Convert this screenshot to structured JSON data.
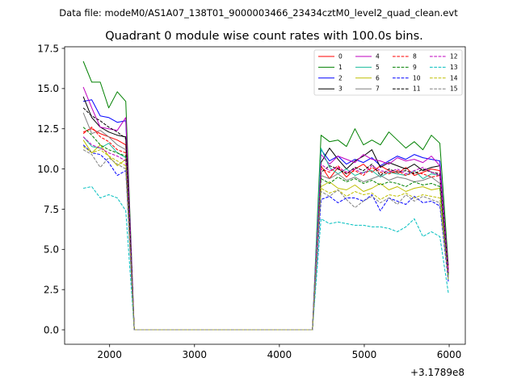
{
  "figure": {
    "suptitle": "Data file: modeM0/AS1A07_138T01_9000003466_23434cztM0_level2_quad_clean.evt",
    "title": "Quadrant 0 module wise count rates with 100.0s bins.",
    "offset_label": "+3.1789e8"
  },
  "chart_data": {
    "type": "line",
    "title": "Quadrant 0 module wise count rates with 100.0s bins.",
    "xlabel": "",
    "ylabel": "",
    "x_offset": 317890000,
    "xlim": [
      1470,
      6190
    ],
    "ylim": [
      -0.9,
      17.6
    ],
    "x_ticks": [
      2000,
      3000,
      4000,
      5000,
      6000
    ],
    "x_tick_labels": [
      "2000",
      "3000",
      "4000",
      "5000",
      "6000"
    ],
    "y_ticks": [
      0,
      2.5,
      5,
      7.5,
      10,
      12.5,
      15,
      17.5
    ],
    "y_tick_labels": [
      "0.0",
      "2.5",
      "5.0",
      "7.5",
      "10.0",
      "12.5",
      "15.0",
      "17.5"
    ],
    "grid": false,
    "legend_location": "top-right",
    "legend_columns": 4,
    "x": [
      1690,
      1790,
      1890,
      1990,
      2090,
      2190,
      2290,
      2390,
      2490,
      2590,
      2690,
      2790,
      2890,
      2990,
      3090,
      3190,
      3290,
      3390,
      3490,
      3590,
      3690,
      3790,
      3890,
      3990,
      4090,
      4190,
      4290,
      4390,
      4490,
      4590,
      4690,
      4790,
      4890,
      4990,
      5090,
      5190,
      5290,
      5390,
      5490,
      5590,
      5690,
      5790,
      5890,
      5990
    ],
    "series": [
      {
        "name": "0",
        "color": "#ff0000",
        "dash": "solid",
        "first": [
          12.3,
          12.5,
          12.2,
          12.0,
          11.8,
          11.5
        ],
        "second": [
          10.2,
          9.4,
          10.1,
          9.5,
          10.0,
          10.3,
          9.8,
          10.2,
          9.9,
          9.7,
          10.1,
          9.6,
          9.8,
          10.0,
          9.9
        ],
        "end": 3.8
      },
      {
        "name": "1",
        "color": "#008000",
        "dash": "solid",
        "first": [
          16.7,
          15.4,
          15.4,
          13.8,
          14.8,
          14.2
        ],
        "second": [
          12.1,
          11.7,
          11.8,
          11.4,
          12.5,
          11.5,
          11.8,
          11.5,
          12.3,
          11.8,
          11.3,
          11.7,
          11.2,
          12.1,
          11.6
        ],
        "end": 4.0
      },
      {
        "name": "2",
        "color": "#0000ff",
        "dash": "solid",
        "first": [
          14.2,
          14.3,
          13.3,
          13.2,
          12.9,
          13.0
        ],
        "second": [
          11.2,
          10.5,
          10.8,
          10.3,
          10.6,
          10.4,
          10.7,
          10.2,
          10.5,
          10.8,
          10.6,
          10.9,
          10.7,
          10.6,
          10.5
        ],
        "end": 3.6
      },
      {
        "name": "3",
        "color": "#000000",
        "dash": "solid",
        "first": [
          14.5,
          13.2,
          12.6,
          12.3,
          12.1,
          12.0
        ],
        "second": [
          10.4,
          11.3,
          10.6,
          10.0,
          10.5,
          10.8,
          11.2,
          10.1,
          10.4,
          10.2,
          10.0,
          10.3,
          9.9,
          10.1,
          10.2
        ],
        "end": 3.5
      },
      {
        "name": "4",
        "color": "#bf00bf",
        "dash": "solid",
        "first": [
          15.1,
          13.8,
          12.6,
          12.5,
          12.4,
          13.2
        ],
        "second": [
          10.9,
          10.3,
          10.8,
          10.6,
          10.4,
          10.9,
          10.6,
          10.5,
          10.3,
          10.7,
          10.5,
          10.6,
          10.4,
          10.8,
          10.2
        ],
        "end": 3.7
      },
      {
        "name": "5",
        "color": "#1abc9c",
        "dash": "solid",
        "first": [
          12.0,
          11.4,
          11.3,
          11.6,
          11.0,
          10.7
        ],
        "second": [
          11.3,
          10.1,
          9.7,
          10.0,
          9.6,
          9.8,
          9.9,
          9.5,
          9.8,
          9.7,
          9.6,
          9.9,
          9.4,
          9.7,
          9.6
        ],
        "end": 3.4
      },
      {
        "name": "6",
        "color": "#bfbf00",
        "dash": "solid",
        "first": [
          11.8,
          11.0,
          11.5,
          10.8,
          10.2,
          10.6
        ],
        "second": [
          8.9,
          9.2,
          8.8,
          8.7,
          9.0,
          8.6,
          8.8,
          9.1,
          8.7,
          8.9,
          8.6,
          8.8,
          8.9,
          8.7,
          8.8
        ],
        "end": 3.2
      },
      {
        "name": "7",
        "color": "#808080",
        "dash": "solid",
        "first": [
          13.5,
          12.2,
          12.4,
          12.0,
          11.5,
          11.2
        ],
        "second": [
          9.6,
          9.4,
          9.7,
          9.3,
          9.5,
          9.2,
          9.4,
          9.6,
          9.3,
          9.5,
          9.4,
          9.2,
          9.3,
          9.5,
          9.1
        ],
        "end": 3.3
      },
      {
        "name": "8",
        "color": "#ff0000",
        "dash": "dashed",
        "first": [
          12.2,
          12.6,
          12.0,
          11.7,
          11.2,
          11.0
        ],
        "second": [
          10.0,
          9.8,
          10.2,
          9.7,
          9.9,
          9.6,
          10.1,
          9.8,
          9.7,
          9.9,
          9.6,
          9.8,
          9.7,
          9.5,
          9.6
        ],
        "end": 3.6
      },
      {
        "name": "9",
        "color": "#008000",
        "dash": "dashed",
        "first": [
          12.6,
          12.1,
          11.5,
          11.2,
          11.0,
          10.8
        ],
        "second": [
          9.4,
          9.1,
          9.5,
          9.2,
          9.4,
          9.1,
          9.3,
          9.0,
          9.2,
          9.1,
          8.9,
          9.2,
          9.0,
          9.1,
          8.9
        ],
        "end": 3.4
      },
      {
        "name": "10",
        "color": "#0000ff",
        "dash": "dashed",
        "first": [
          11.5,
          11.0,
          10.9,
          10.4,
          9.6,
          9.9
        ],
        "second": [
          8.1,
          8.3,
          7.9,
          8.2,
          8.2,
          8.0,
          8.4,
          7.4,
          8.2,
          8.0,
          7.8,
          8.3,
          7.9,
          8.0,
          7.7
        ],
        "end": 3.0
      },
      {
        "name": "11",
        "color": "#000000",
        "dash": "dashed",
        "first": [
          13.8,
          13.3,
          13.0,
          12.6,
          12.3,
          11.9
        ],
        "second": [
          9.8,
          10.2,
          10.0,
          9.7,
          10.1,
          9.9,
          10.3,
          9.6,
          10.0,
          9.8,
          9.9,
          9.7,
          10.0,
          9.8,
          9.7
        ],
        "end": 3.5
      },
      {
        "name": "12",
        "color": "#bf00bf",
        "dash": "dashed",
        "first": [
          12.0,
          11.5,
          11.3,
          11.0,
          10.8,
          10.5
        ],
        "second": [
          10.3,
          9.9,
          10.1,
          9.8,
          10.0,
          9.7,
          10.2,
          9.9,
          9.8,
          10.0,
          9.7,
          9.9,
          10.1,
          9.8,
          9.6
        ],
        "end": 3.6
      },
      {
        "name": "13",
        "color": "#00bfbf",
        "dash": "dashed",
        "first": [
          8.8,
          8.9,
          8.2,
          8.4,
          8.2,
          7.4
        ],
        "second": [
          6.9,
          6.6,
          6.7,
          6.6,
          6.5,
          6.5,
          6.4,
          6.4,
          6.3,
          6.1,
          6.4,
          6.9,
          5.8,
          6.1,
          5.8
        ],
        "end": 2.3
      },
      {
        "name": "14",
        "color": "#bfbf00",
        "dash": "dashed",
        "first": [
          11.4,
          11.0,
          11.2,
          10.8,
          10.5,
          10.2
        ],
        "second": [
          8.8,
          8.5,
          8.7,
          8.3,
          8.6,
          8.4,
          8.5,
          8.1,
          8.4,
          8.3,
          8.5,
          8.2,
          8.4,
          8.3,
          8.2
        ],
        "end": 3.1
      },
      {
        "name": "15",
        "color": "#808080",
        "dash": "dashed",
        "first": [
          11.2,
          10.9,
          10.1,
          10.7,
          10.3,
          10.0
        ],
        "second": [
          8.6,
          8.3,
          8.7,
          8.1,
          7.6,
          8.0,
          8.3,
          7.9,
          8.2,
          7.8,
          8.4,
          8.0,
          8.3,
          8.1,
          7.9
        ],
        "end": 3.2
      }
    ]
  }
}
